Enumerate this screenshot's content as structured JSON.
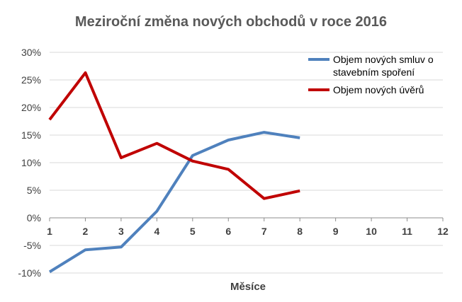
{
  "chart_data": {
    "type": "line",
    "title": "Meziroční změna nových obchodů v roce 2016",
    "xlabel": "Měsíce",
    "ylabel": "",
    "x_ticks": [
      "1",
      "2",
      "3",
      "4",
      "5",
      "6",
      "7",
      "8",
      "9",
      "10",
      "11",
      "12"
    ],
    "xlim": [
      1,
      12
    ],
    "y_ticks": [
      "30%",
      "25%",
      "20%",
      "15%",
      "10%",
      "5%",
      "0%",
      "-5%",
      "-10%"
    ],
    "ylim": [
      -10,
      30
    ],
    "grid": true,
    "legend_position": "top-right",
    "series": [
      {
        "name": "Objem nových smluv o stavebním spoření",
        "name_lines": [
          "Objem nových smluv o",
          "stavebním spoření"
        ],
        "color": "#4F81BD",
        "x": [
          1,
          2,
          3,
          4,
          5,
          6,
          7,
          8
        ],
        "values": [
          -9.8,
          -5.8,
          -5.3,
          1.2,
          11.3,
          14.1,
          15.5,
          14.5
        ]
      },
      {
        "name": "Objem nových úvěrů",
        "name_lines": [
          "Objem nových úvěrů"
        ],
        "color": "#C00000",
        "x": [
          1,
          2,
          3,
          4,
          5,
          6,
          7,
          8
        ],
        "values": [
          17.8,
          26.3,
          10.9,
          13.5,
          10.3,
          8.8,
          3.5,
          4.9
        ]
      }
    ]
  }
}
